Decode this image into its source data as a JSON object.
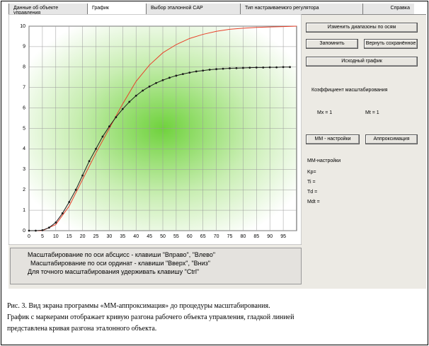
{
  "tabs": [
    "Данные об объекте управления",
    "График",
    "Выбор эталонной САР",
    "Тип настраиваемого регулятора",
    "Справка"
  ],
  "buttons": [
    "Изменить диапазоны по осям",
    "Запомнить",
    "Вернуть сохранённое",
    "Исходный график",
    "ММ - настройки",
    "Аппроксимация"
  ],
  "labels": [
    "Коэффициент масштабирования",
    "Mx = 1",
    "Mt = 1",
    "ММ-настройки",
    "Kp=",
    "Ti =",
    "Td =",
    "Mdt ="
  ],
  "instructions": [
    "Масштабирование по оси абсцисс - клавиши \"Вправо\", \"Влево\"",
    "Масштабирование по оси ординат - клавиши \"Вверх\", \"Вниз\"",
    "Для точного масштабирования удерживать клавишу \"Ctrl\""
  ],
  "caption": [
    "Рис. 3.  Вид экрана программы «ММ-аппроксимация» до процедуры масштабирования.",
    "График с маркерами отображает кривую разгона рабочего объекта управления, гладкой линией",
    "представлена кривая разгона эталонного объекта."
  ],
  "chart_data": {
    "type": "line",
    "xlim": [
      0,
      100
    ],
    "ylim": [
      0,
      10
    ],
    "xticks": [
      0,
      5,
      10,
      15,
      20,
      25,
      30,
      35,
      40,
      45,
      50,
      55,
      60,
      65,
      70,
      75,
      80,
      85,
      90,
      95
    ],
    "yticks": [
      0,
      1,
      2,
      3,
      4,
      5,
      6,
      7,
      8,
      9,
      10
    ],
    "grid": true,
    "series": [
      {
        "color": "#e8402a",
        "markers": false,
        "x": [
          0,
          5,
          10,
          15,
          20,
          25,
          30,
          35,
          40,
          45,
          50,
          55,
          60,
          65,
          70,
          75,
          80,
          85,
          90,
          95,
          100
        ],
        "values": [
          0,
          0,
          0.3,
          1.2,
          2.5,
          3.8,
          5.0,
          6.2,
          7.3,
          8.1,
          8.7,
          9.1,
          9.4,
          9.6,
          9.75,
          9.85,
          9.9,
          9.94,
          9.96,
          9.98,
          10
        ]
      },
      {
        "color": "#1a1a1a",
        "markers": true,
        "x": [
          0,
          2.5,
          5,
          7.5,
          10,
          12.5,
          15,
          17.5,
          20,
          22.5,
          25,
          27.5,
          30,
          32.5,
          35,
          37.5,
          40,
          42.5,
          45,
          47.5,
          50,
          52.5,
          55,
          57.5,
          60,
          62.5,
          65,
          67.5,
          70,
          72.5,
          75,
          77.5,
          80,
          82.5,
          85,
          87.5,
          90,
          92.5,
          95,
          97.5
        ],
        "values": [
          0,
          0,
          0.02,
          0.15,
          0.4,
          0.85,
          1.4,
          2.0,
          2.7,
          3.4,
          4.0,
          4.6,
          5.1,
          5.55,
          5.95,
          6.3,
          6.6,
          6.85,
          7.05,
          7.22,
          7.36,
          7.48,
          7.58,
          7.66,
          7.73,
          7.79,
          7.83,
          7.87,
          7.9,
          7.92,
          7.94,
          7.95,
          7.96,
          7.97,
          7.98,
          7.98,
          7.99,
          7.99,
          8.0,
          8.0
        ]
      }
    ]
  }
}
